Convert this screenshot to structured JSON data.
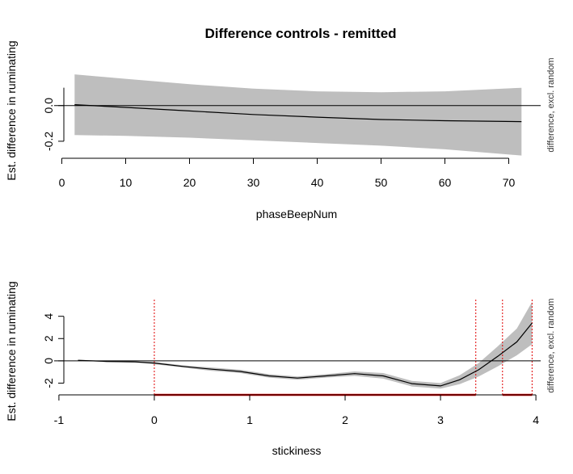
{
  "chart_data": [
    {
      "type": "line",
      "title": "Difference controls - remitted",
      "xlabel": "phaseBeepNum",
      "ylabel": "Est. difference in ruminating",
      "side_label": "difference, excl. random",
      "xlim": [
        -1.2,
        75
      ],
      "ylim": [
        -0.3,
        0.18
      ],
      "x_ticks": [
        0,
        10,
        20,
        30,
        40,
        50,
        60,
        70
      ],
      "y_ticks": [
        -0.2,
        0.0
      ],
      "y_tick_labels": [
        "-0.2",
        "0.0"
      ],
      "reference_line": 0,
      "grid": false,
      "series": [
        {
          "x": [
            2,
            10,
            20,
            30,
            40,
            50,
            60,
            72
          ],
          "estimate": [
            0.005,
            -0.01,
            -0.03,
            -0.05,
            -0.065,
            -0.078,
            -0.085,
            -0.09
          ],
          "lower": [
            -0.165,
            -0.17,
            -0.18,
            -0.195,
            -0.21,
            -0.225,
            -0.245,
            -0.28
          ],
          "upper": [
            0.175,
            0.15,
            0.12,
            0.095,
            0.08,
            0.075,
            0.08,
            0.1
          ]
        }
      ]
    },
    {
      "type": "line",
      "xlabel": "stickiness",
      "ylabel": "Est. difference in ruminating",
      "side_label": "difference, excl. random",
      "xlim": [
        -1.05,
        4.05
      ],
      "ylim": [
        -3.2,
        5.5
      ],
      "x_ticks": [
        -1,
        0,
        1,
        2,
        3,
        4
      ],
      "y_ticks": [
        -2,
        0,
        2,
        4
      ],
      "reference_line": 0,
      "grid": false,
      "significance_lines": [
        0,
        3.37,
        3.65,
        3.96
      ],
      "significance_intervals": [
        [
          0,
          3.37
        ],
        [
          3.65,
          3.96
        ]
      ],
      "series": [
        {
          "x": [
            -0.8,
            -0.5,
            -0.2,
            0,
            0.3,
            0.6,
            0.9,
            1.2,
            1.5,
            1.8,
            2.1,
            2.4,
            2.7,
            3.0,
            3.2,
            3.4,
            3.6,
            3.8,
            3.96
          ],
          "estimate": [
            0.05,
            -0.05,
            -0.1,
            -0.2,
            -0.5,
            -0.75,
            -0.95,
            -1.35,
            -1.55,
            -1.35,
            -1.15,
            -1.35,
            -2.05,
            -2.25,
            -1.7,
            -0.8,
            0.4,
            1.7,
            3.4
          ],
          "lower": [
            0.0,
            -0.1,
            -0.15,
            -0.3,
            -0.6,
            -0.9,
            -1.1,
            -1.5,
            -1.7,
            -1.5,
            -1.35,
            -1.6,
            -2.3,
            -2.5,
            -2.1,
            -1.4,
            -0.5,
            0.5,
            1.5
          ],
          "upper": [
            0.1,
            0.0,
            -0.05,
            -0.1,
            -0.4,
            -0.6,
            -0.8,
            -1.2,
            -1.4,
            -1.2,
            -0.95,
            -1.1,
            -1.8,
            -2.0,
            -1.3,
            -0.2,
            1.3,
            2.9,
            5.3
          ]
        }
      ]
    }
  ]
}
